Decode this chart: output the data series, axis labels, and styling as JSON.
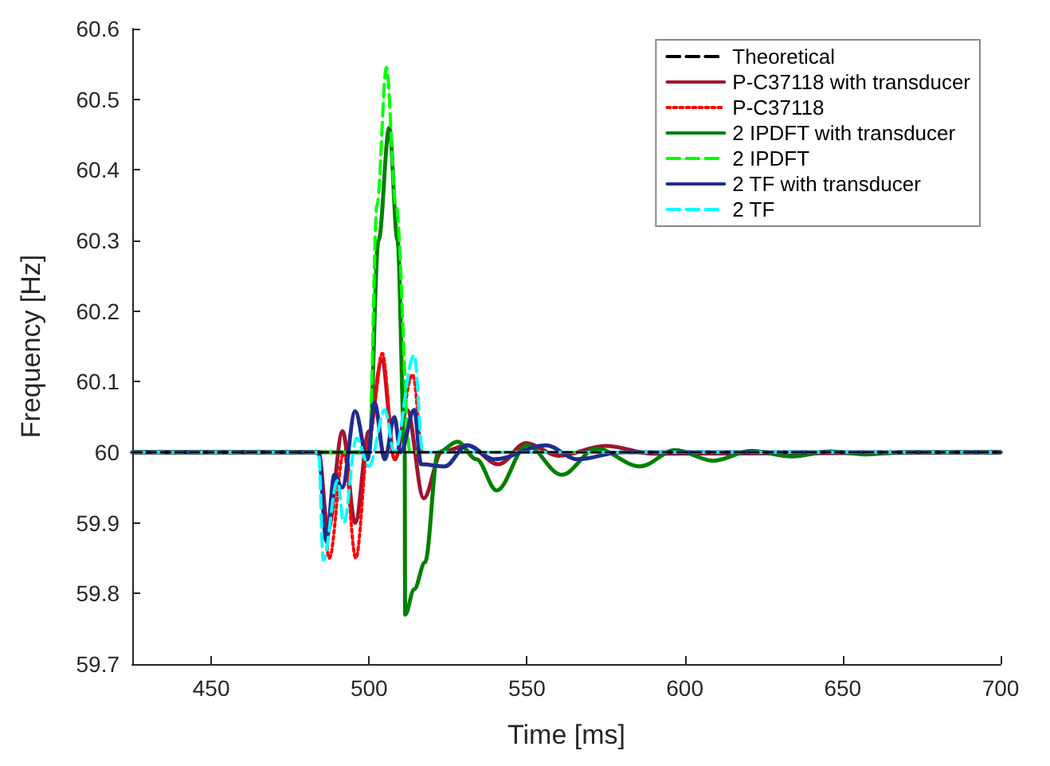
{
  "chart_data": {
    "type": "line",
    "xlabel": "Time [ms]",
    "ylabel": "Frequency [Hz]",
    "xlim": [
      425,
      700
    ],
    "xticks": [
      450,
      500,
      550,
      600,
      650,
      700
    ],
    "ylim": [
      59.7,
      60.6
    ],
    "yticks": [
      59.7,
      59.8,
      59.9,
      60,
      60.1,
      60.2,
      60.3,
      60.4,
      60.5,
      60.6
    ],
    "grid": false,
    "legend": "top right",
    "marker": "none",
    "series": [
      {
        "name": "Theoretical",
        "color": "#000000",
        "line_style": "dashed",
        "x": [
          425,
          700
        ],
        "values": [
          60,
          60
        ]
      },
      {
        "name": "P-C37118 with transducer",
        "color": "#a2142f",
        "line_style": "solid",
        "x": [
          425,
          484,
          487,
          491.6,
          495.6,
          500,
          504,
          508.2,
          512,
          517.3,
          523,
          531,
          541,
          549.7,
          560,
          575,
          590,
          700
        ],
        "values": [
          60,
          60,
          59.89,
          60.03,
          59.9,
          60.03,
          60.13,
          59.99,
          60.06,
          59.935,
          60,
          60.01,
          59.983,
          60.013,
          59.995,
          60.009,
          59.998,
          60
        ]
      },
      {
        "name": "P-C37118",
        "color": "#ff0000",
        "line_style": "dotted",
        "x": [
          425,
          484,
          487.4,
          492,
          495.8,
          500,
          504.2,
          508,
          513.8,
          517,
          700
        ],
        "values": [
          60,
          60,
          59.85,
          60,
          59.85,
          60.02,
          60.14,
          59.99,
          60.11,
          60,
          60
        ]
      },
      {
        "name": "2 IPDFT with transducer",
        "color": "#008000",
        "line_style": "solid",
        "x": [
          425,
          500,
          503,
          506.4,
          509,
          511.3,
          511.4,
          514.3,
          517.7,
          521.9,
          528,
          534,
          540.4,
          550,
          561,
          572,
          585.8,
          597,
          609,
          621,
          634,
          646,
          657,
          670,
          700
        ],
        "values": [
          60,
          60,
          60.3,
          60.46,
          60.3,
          60,
          59.77,
          59.806,
          59.844,
          60,
          60.015,
          59.99,
          59.946,
          60.01,
          59.968,
          60.005,
          59.98,
          60.003,
          59.988,
          60.002,
          59.994,
          60.001,
          59.997,
          60,
          60
        ]
      },
      {
        "name": "2 IPDFT",
        "color": "#00ff00",
        "line_style": "dashed",
        "x": [
          425,
          500,
          502.5,
          505.5,
          508.5,
          513,
          700
        ],
        "values": [
          60,
          60,
          60.35,
          60.545,
          60.35,
          60,
          60
        ]
      },
      {
        "name": "2 TF with transducer",
        "color": "#1f2d8f",
        "line_style": "solid",
        "x": [
          425,
          484,
          486.5,
          489,
          491.5,
          495.6,
          499.5,
          501.7,
          505,
          508,
          510,
          514.3,
          516.5,
          524,
          531,
          539.6,
          556,
          566,
          580,
          700
        ],
        "values": [
          60,
          60,
          59.874,
          59.968,
          59.95,
          60.058,
          59.99,
          60.07,
          59.99,
          60.05,
          60,
          60.06,
          59.983,
          59.98,
          60.01,
          59.99,
          60.01,
          59.99,
          60,
          60
        ]
      },
      {
        "name": "2 TF",
        "color": "#00ffff",
        "line_style": "dashed",
        "x": [
          425,
          484,
          485.5,
          490,
          492,
          496,
          500,
          505,
          508,
          514.3,
          517,
          700
        ],
        "values": [
          60,
          60,
          59.847,
          59.96,
          59.9,
          60.02,
          59.98,
          60.06,
          60,
          60.138,
          60,
          60
        ]
      }
    ]
  }
}
